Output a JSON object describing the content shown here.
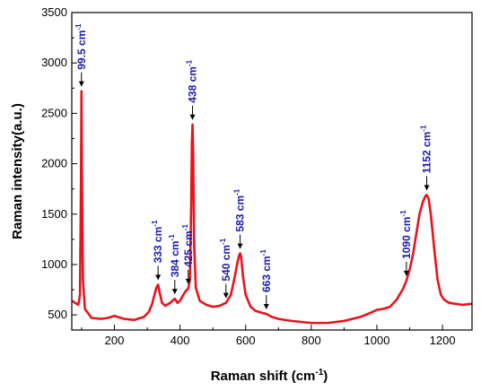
{
  "chart_data": {
    "type": "line",
    "title": "",
    "xlabel": "Raman shift (cm",
    "xlabel_sup": "-1",
    "xlabel_tail": ")",
    "ylabel": "Raman intensity(a.u.)",
    "xlim": [
      70,
      1290
    ],
    "ylim": [
      350,
      3500
    ],
    "xticks": [
      200,
      400,
      600,
      800,
      1000,
      1200
    ],
    "yticks": [
      500,
      1000,
      1500,
      2000,
      2500,
      3000,
      3500
    ],
    "grid": false,
    "series": [
      {
        "color": "#e8141c",
        "x": [
          70,
          80,
          90,
          95,
          98,
          99.5,
          101,
          104,
          110,
          130,
          160,
          180,
          200,
          210,
          230,
          260,
          290,
          305,
          315,
          322,
          328,
          333,
          338,
          345,
          355,
          370,
          384,
          392,
          400,
          410,
          418,
          425,
          430,
          434,
          436,
          438,
          440,
          443,
          448,
          460,
          480,
          500,
          520,
          540,
          555,
          565,
          575,
          580,
          583,
          586,
          592,
          600,
          615,
          630,
          650,
          663,
          680,
          700,
          740,
          800,
          850,
          900,
          950,
          980,
          1000,
          1020,
          1040,
          1060,
          1080,
          1090,
          1100,
          1110,
          1120,
          1130,
          1140,
          1148,
          1152,
          1158,
          1165,
          1175,
          1185,
          1195,
          1205,
          1220,
          1240,
          1260,
          1290
        ],
        "y": [
          640,
          620,
          600,
          700,
          1800,
          2720,
          1800,
          850,
          560,
          470,
          460,
          470,
          490,
          480,
          460,
          450,
          480,
          530,
          610,
          700,
          770,
          800,
          720,
          620,
          590,
          620,
          660,
          620,
          640,
          700,
          740,
          760,
          850,
          1600,
          2200,
          2390,
          2100,
          1200,
          770,
          640,
          600,
          580,
          590,
          620,
          700,
          850,
          1020,
          1090,
          1110,
          1080,
          880,
          700,
          580,
          540,
          520,
          510,
          480,
          460,
          440,
          420,
          420,
          440,
          480,
          520,
          550,
          560,
          580,
          650,
          760,
          840,
          950,
          1100,
          1300,
          1500,
          1620,
          1680,
          1690,
          1650,
          1480,
          1150,
          850,
          700,
          650,
          620,
          610,
          600,
          610
        ]
      }
    ],
    "annotations": [
      {
        "text": "99.5 cm",
        "sup": "-1",
        "x": 99.5,
        "y": 2720
      },
      {
        "text": "333 cm",
        "sup": "-1",
        "x": 333,
        "y": 800
      },
      {
        "text": "384 cm",
        "sup": "-1",
        "x": 384,
        "y": 660
      },
      {
        "text": "425 cm",
        "sup": "-1",
        "x": 425,
        "y": 760
      },
      {
        "text": "438 cm",
        "sup": "-1",
        "x": 438,
        "y": 2390
      },
      {
        "text": "540 cm",
        "sup": "-1",
        "x": 540,
        "y": 620
      },
      {
        "text": "583 cm",
        "sup": "-1",
        "x": 583,
        "y": 1110
      },
      {
        "text": "663 cm",
        "sup": "-1",
        "x": 663,
        "y": 510
      },
      {
        "text": "1090 cm",
        "sup": "-1",
        "x": 1090,
        "y": 840
      },
      {
        "text": "1152 cm",
        "sup": "-1",
        "x": 1152,
        "y": 1690
      }
    ]
  }
}
